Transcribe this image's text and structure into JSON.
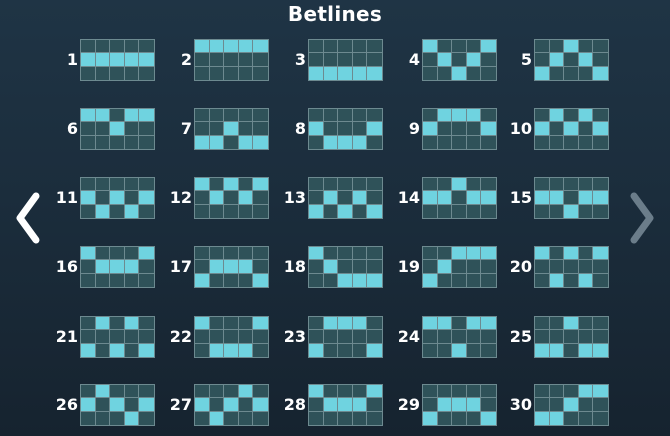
{
  "title": "Betlines",
  "colors": {
    "active_cell": "#6fd3e0",
    "inactive_cell": "#2f5259",
    "arrow_left": "#ffffff",
    "arrow_right": "#6b7d8a"
  },
  "nav": {
    "prev_icon": "chevron-left-icon",
    "next_icon": "chevron-right-icon"
  },
  "betlines": [
    {
      "label": "1",
      "rows": [
        1,
        1,
        1,
        1,
        1
      ]
    },
    {
      "label": "2",
      "rows": [
        0,
        0,
        0,
        0,
        0
      ]
    },
    {
      "label": "3",
      "rows": [
        2,
        2,
        2,
        2,
        2
      ]
    },
    {
      "label": "4",
      "rows": [
        0,
        1,
        2,
        1,
        0
      ]
    },
    {
      "label": "5",
      "rows": [
        2,
        1,
        0,
        1,
        2
      ]
    },
    {
      "label": "6",
      "rows": [
        0,
        0,
        1,
        0,
        0
      ]
    },
    {
      "label": "7",
      "rows": [
        2,
        2,
        1,
        2,
        2
      ]
    },
    {
      "label": "8",
      "rows": [
        1,
        2,
        2,
        2,
        1
      ]
    },
    {
      "label": "9",
      "rows": [
        1,
        0,
        0,
        0,
        1
      ]
    },
    {
      "label": "10",
      "rows": [
        1,
        0,
        1,
        0,
        1
      ]
    },
    {
      "label": "11",
      "rows": [
        1,
        2,
        1,
        2,
        1
      ]
    },
    {
      "label": "12",
      "rows": [
        0,
        1,
        0,
        1,
        0
      ]
    },
    {
      "label": "13",
      "rows": [
        2,
        1,
        2,
        1,
        2
      ]
    },
    {
      "label": "14",
      "rows": [
        1,
        1,
        0,
        1,
        1
      ]
    },
    {
      "label": "15",
      "rows": [
        1,
        1,
        2,
        1,
        1
      ]
    },
    {
      "label": "16",
      "rows": [
        0,
        1,
        1,
        1,
        0
      ]
    },
    {
      "label": "17",
      "rows": [
        2,
        1,
        1,
        1,
        2
      ]
    },
    {
      "label": "18",
      "rows": [
        0,
        1,
        2,
        2,
        2
      ]
    },
    {
      "label": "19",
      "rows": [
        2,
        1,
        0,
        0,
        0
      ]
    },
    {
      "label": "20",
      "rows": [
        0,
        2,
        0,
        2,
        0
      ]
    },
    {
      "label": "21",
      "rows": [
        2,
        0,
        2,
        0,
        2
      ]
    },
    {
      "label": "22",
      "rows": [
        0,
        2,
        2,
        2,
        0
      ]
    },
    {
      "label": "23",
      "rows": [
        2,
        0,
        0,
        0,
        2
      ]
    },
    {
      "label": "24",
      "rows": [
        0,
        0,
        2,
        0,
        0
      ]
    },
    {
      "label": "25",
      "rows": [
        2,
        2,
        0,
        2,
        2
      ]
    },
    {
      "label": "26",
      "rows": [
        1,
        0,
        1,
        2,
        1
      ]
    },
    {
      "label": "27",
      "rows": [
        1,
        2,
        1,
        0,
        1
      ]
    },
    {
      "label": "28",
      "rows": [
        0,
        1,
        1,
        1,
        0
      ]
    },
    {
      "label": "29",
      "rows": [
        2,
        1,
        1,
        1,
        2
      ]
    },
    {
      "label": "30",
      "rows": [
        2,
        2,
        1,
        0,
        0
      ]
    }
  ]
}
